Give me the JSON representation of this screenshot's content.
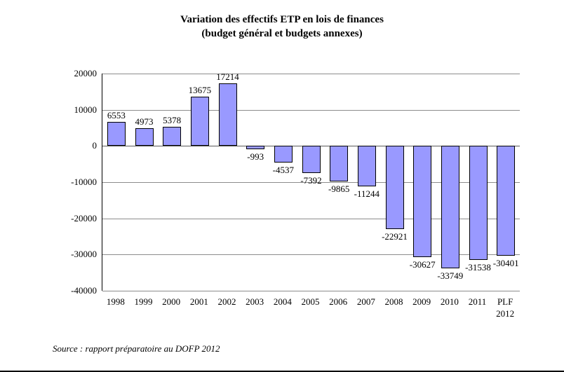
{
  "chart_data": {
    "type": "bar",
    "title": "Variation des effectifs ETP en lois de finances",
    "subtitle": "(budget général et budgets annexes)",
    "categories": [
      "1998",
      "1999",
      "2000",
      "2001",
      "2002",
      "2003",
      "2004",
      "2005",
      "2006",
      "2007",
      "2008",
      "2009",
      "2010",
      "2011",
      "PLF 2012"
    ],
    "values": [
      6553,
      4973,
      5378,
      13675,
      17214,
      -993,
      -4537,
      -7392,
      -9865,
      -11244,
      -22921,
      -30627,
      -33749,
      -31538,
      -30401
    ],
    "xlabel": "",
    "ylabel": "",
    "ylim": [
      -40000,
      20000
    ],
    "yticks": [
      20000,
      10000,
      0,
      -10000,
      -20000,
      -30000,
      -40000
    ],
    "grid": true,
    "legend": false,
    "bar_color": "#9999FF",
    "bar_border_color": "#000000"
  },
  "source": {
    "text": "Source : rapport préparatoire au DOFP 2012"
  }
}
